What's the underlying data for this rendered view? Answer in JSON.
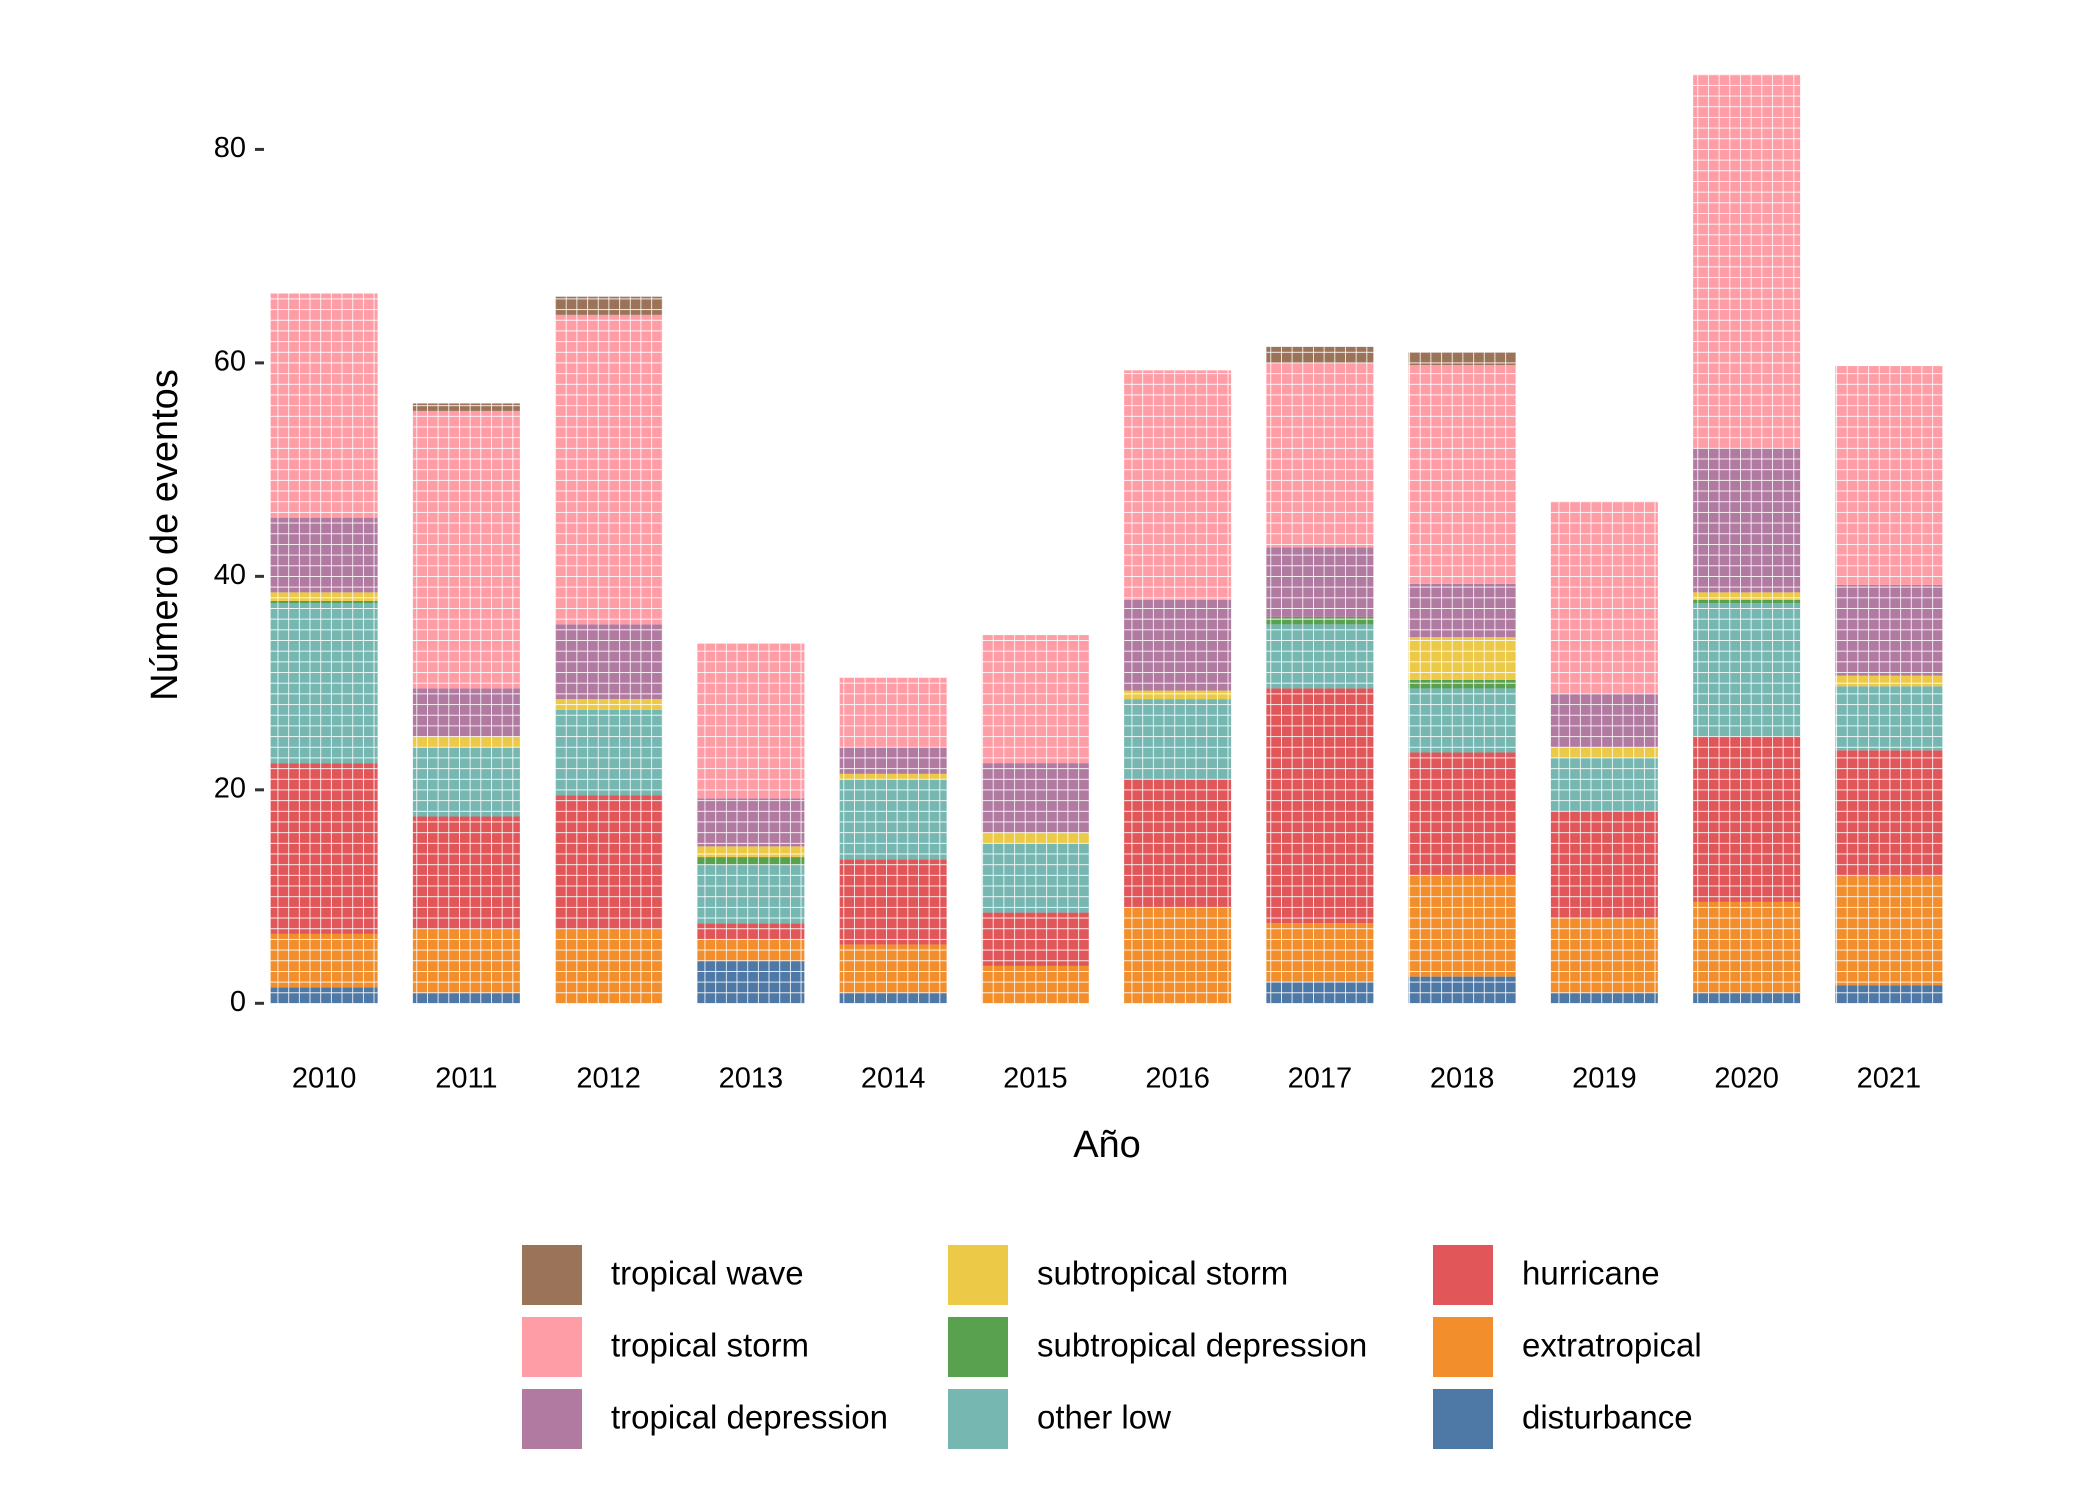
{
  "chart_data": {
    "type": "stacked_bar",
    "x_label": "Año",
    "y_label": "Número de eventos",
    "categories": [
      "2010",
      "2011",
      "2012",
      "2013",
      "2014",
      "2015",
      "2016",
      "2017",
      "2018",
      "2019",
      "2020",
      "2021"
    ],
    "ylim": [
      -4,
      91
    ],
    "yticks": [
      0,
      20,
      40,
      60,
      80
    ],
    "grid": false,
    "series": [
      {
        "name": "disturbance",
        "color": "#4E79A7",
        "values": [
          1.5,
          1,
          0,
          4,
          1,
          0,
          0,
          2,
          2.5,
          1,
          1,
          1.7
        ]
      },
      {
        "name": "extratropical",
        "color": "#F28E2B",
        "values": [
          5,
          6,
          7,
          2,
          4.5,
          3.5,
          9,
          5.5,
          9.5,
          7,
          8.5,
          10.2
        ]
      },
      {
        "name": "hurricane",
        "color": "#E15759",
        "values": [
          16,
          10.5,
          12.5,
          1.5,
          8,
          5,
          12,
          22,
          11.5,
          10,
          15.5,
          11.8
        ]
      },
      {
        "name": "other low",
        "color": "#76B7B2",
        "values": [
          15,
          6.5,
          8,
          5.5,
          7.5,
          6.5,
          7.5,
          6,
          6,
          5,
          12.5,
          6
        ]
      },
      {
        "name": "subtropical depression",
        "color": "#59A14F",
        "values": [
          0.2,
          0,
          0,
          0.7,
          0,
          0,
          0,
          0.7,
          0.8,
          0,
          0.3,
          0
        ]
      },
      {
        "name": "subtropical storm",
        "color": "#EDC948",
        "values": [
          0.8,
          1,
          1,
          1,
          0.5,
          1,
          0.8,
          0,
          4,
          1,
          0.7,
          1
        ]
      },
      {
        "name": "tropical depression",
        "color": "#B07AA1",
        "values": [
          7,
          4.5,
          7,
          4.5,
          2.5,
          6.5,
          8.5,
          6.5,
          5,
          5,
          13.5,
          8.5
        ]
      },
      {
        "name": "tropical storm",
        "color": "#FF9DA7",
        "values": [
          21,
          26,
          29,
          14.5,
          6.5,
          12,
          21.5,
          17.3,
          20.5,
          18,
          35,
          20.5
        ]
      },
      {
        "name": "tropical wave",
        "color": "#9A7359",
        "values": [
          0,
          0.7,
          1.7,
          0,
          0,
          0,
          0,
          1.5,
          1.2,
          0,
          0,
          0
        ]
      }
    ]
  }
}
